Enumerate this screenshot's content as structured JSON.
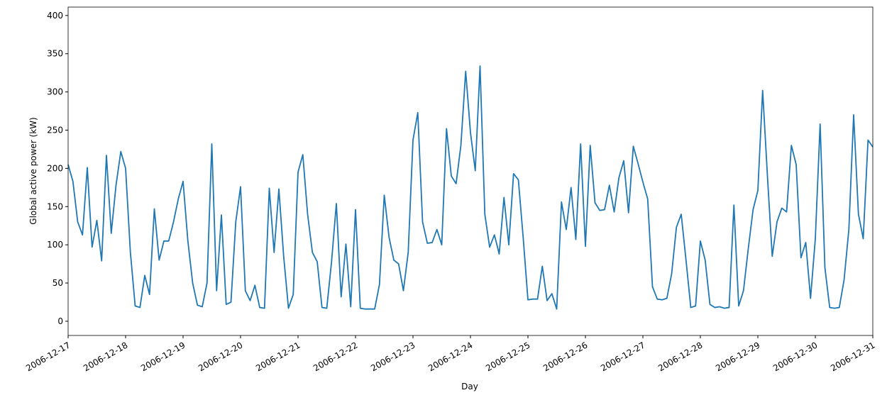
{
  "chart_data": {
    "type": "line",
    "xlabel": "Day",
    "ylabel": "Global active power (kW)",
    "categories": [
      "2006-12-17",
      null,
      null,
      null,
      null,
      null,
      null,
      null,
      null,
      null,
      null,
      null,
      "2006-12-18",
      null,
      null,
      null,
      null,
      null,
      null,
      null,
      null,
      null,
      null,
      null,
      "2006-12-19",
      null,
      null,
      null,
      null,
      null,
      null,
      null,
      null,
      null,
      null,
      null,
      "2006-12-20",
      null,
      null,
      null,
      null,
      null,
      null,
      null,
      null,
      null,
      null,
      null,
      "2006-12-21",
      null,
      null,
      null,
      null,
      null,
      null,
      null,
      null,
      null,
      null,
      null,
      "2006-12-22",
      null,
      null,
      null,
      null,
      null,
      null,
      null,
      null,
      null,
      null,
      null,
      "2006-12-23",
      null,
      null,
      null,
      null,
      null,
      null,
      null,
      null,
      null,
      null,
      null,
      "2006-12-24",
      null,
      null,
      null,
      null,
      null,
      null,
      null,
      null,
      null,
      null,
      null,
      "2006-12-25",
      null,
      null,
      null,
      null,
      null,
      null,
      null,
      null,
      null,
      null,
      null,
      "2006-12-26",
      null,
      null,
      null,
      null,
      null,
      null,
      null,
      null,
      null,
      null,
      null,
      "2006-12-27",
      null,
      null,
      null,
      null,
      null,
      null,
      null,
      null,
      null,
      null,
      null,
      "2006-12-28",
      null,
      null,
      null,
      null,
      null,
      null,
      null,
      null,
      null,
      null,
      null,
      "2006-12-29",
      null,
      null,
      null,
      null,
      null,
      null,
      null,
      null,
      null,
      null,
      null,
      "2006-12-30",
      null,
      null,
      null,
      null,
      null,
      null,
      null,
      null,
      null,
      null,
      null,
      "2006-12-31"
    ],
    "series": [
      {
        "color": "#1f77b4",
        "values": [
          205,
          183,
          130,
          113,
          201,
          97,
          132,
          79,
          217,
          115,
          178,
          222,
          200,
          90,
          20,
          18,
          60,
          35,
          147,
          80,
          105,
          105,
          130,
          160,
          183,
          105,
          50,
          21,
          19,
          50,
          232,
          40,
          139,
          22,
          25,
          130,
          176,
          40,
          27,
          47,
          18,
          17,
          174,
          90,
          173,
          85,
          17,
          35,
          195,
          218,
          140,
          90,
          78,
          18,
          17,
          78,
          154,
          32,
          101,
          19,
          146,
          17,
          16,
          16,
          16,
          48,
          165,
          110,
          80,
          75,
          40,
          90,
          237,
          273,
          130,
          102,
          103,
          120,
          100,
          252,
          190,
          180,
          230,
          327,
          247,
          197,
          334,
          140,
          97,
          113,
          88,
          162,
          100,
          193,
          185,
          110,
          28,
          29,
          29,
          72,
          27,
          36,
          16,
          156,
          120,
          175,
          107,
          232,
          98,
          230,
          155,
          145,
          146,
          178,
          143,
          188,
          210,
          142,
          229,
          206,
          182,
          160,
          45,
          29,
          28,
          30,
          62,
          123,
          140,
          80,
          18,
          20,
          105,
          80,
          22,
          18,
          19,
          17,
          18,
          152,
          20,
          40,
          95,
          146,
          171,
          302,
          190,
          85,
          130,
          148,
          143,
          230,
          205,
          83,
          103,
          30,
          108,
          258,
          70,
          18,
          17,
          18,
          54,
          120,
          270,
          140,
          108,
          237,
          228
        ]
      }
    ],
    "ylim": [
      -18.6,
      411
    ],
    "yticks": [
      0,
      50,
      100,
      150,
      200,
      250,
      300,
      350,
      400
    ]
  }
}
